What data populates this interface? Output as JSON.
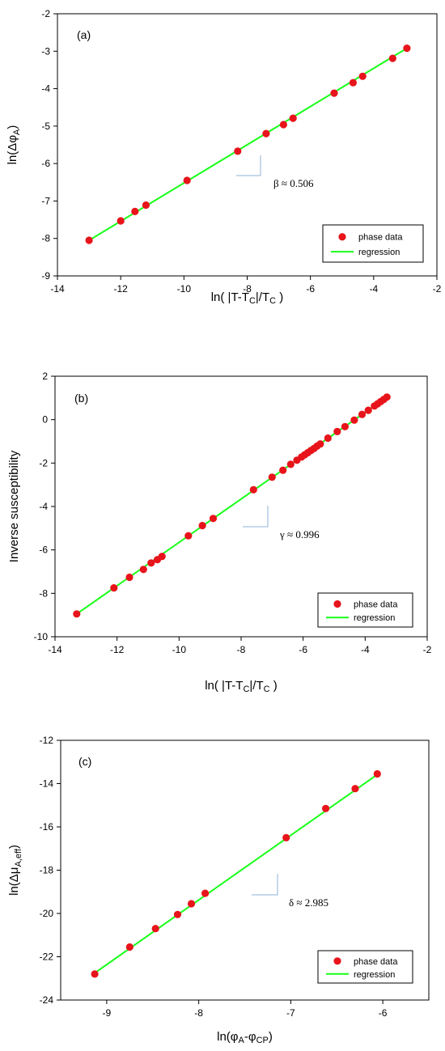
{
  "chart_data": [
    {
      "type": "scatter",
      "panel_label": "(a)",
      "xlabel": {
        "main": "ln( |T-T",
        "sub": "C",
        "mid": "|/T",
        "sub2": "C",
        "end": " )"
      },
      "ylabel": {
        "main": "ln(Δφ",
        "sub": "A",
        "end": ")"
      },
      "xlim": [
        -14,
        -2
      ],
      "ylim": [
        -9,
        -2
      ],
      "xticks": [
        "-14",
        "-12",
        "-10",
        "-8",
        "-6",
        "-4",
        "-2"
      ],
      "yticks": [
        "-9",
        "-8",
        "-7",
        "-6",
        "-5",
        "-4",
        "-3",
        "-2"
      ],
      "exponent_label": "β ≈ 0.506",
      "legend": {
        "position": "bottom-right",
        "entries": [
          "phase data",
          "regression"
        ]
      },
      "series": [
        {
          "name": "phase data",
          "kind": "points",
          "color": "#e8141b",
          "x": [
            -13.0,
            -12.0,
            -11.55,
            -11.2,
            -9.9,
            -8.3,
            -7.4,
            -6.85,
            -6.55,
            -5.25,
            -4.65,
            -4.35,
            -3.4,
            -2.95
          ],
          "y": [
            -8.05,
            -7.53,
            -7.28,
            -7.11,
            -6.45,
            -5.67,
            -5.2,
            -4.96,
            -4.79,
            -4.12,
            -3.84,
            -3.67,
            -3.19,
            -2.92
          ]
        },
        {
          "name": "regression",
          "kind": "line",
          "color": "#19ff19",
          "x": [
            -13.0,
            -2.95
          ],
          "y": [
            -8.05,
            -2.92
          ]
        }
      ]
    },
    {
      "type": "scatter",
      "panel_label": "(b)",
      "xlabel": {
        "main": "ln( |T-T",
        "sub": "C",
        "mid": "|/T",
        "sub2": "C",
        "end": " )"
      },
      "ylabel": {
        "main": "Inverse susceptibility",
        "sub": "",
        "end": ""
      },
      "xlim": [
        -14,
        -2
      ],
      "ylim": [
        -10,
        2
      ],
      "xticks": [
        "-14",
        "-12",
        "-10",
        "-8",
        "-6",
        "-4",
        "-2"
      ],
      "yticks": [
        "-10",
        "-8",
        "-6",
        "-4",
        "-2",
        "0",
        "2"
      ],
      "exponent_label": "γ ≈ 0.996",
      "legend": {
        "position": "bottom-right",
        "entries": [
          "phase data",
          "regression"
        ]
      },
      "series": [
        {
          "name": "phase data",
          "kind": "points",
          "color": "#e8141b",
          "x": [
            -13.3,
            -12.1,
            -11.6,
            -11.15,
            -10.9,
            -10.7,
            -10.55,
            -9.7,
            -9.25,
            -8.9,
            -7.6,
            -7.0,
            -6.65,
            -6.4,
            -6.2,
            -6.05,
            -5.95,
            -5.85,
            -5.75,
            -5.65,
            -5.55,
            -5.45,
            -5.2,
            -4.9,
            -4.65,
            -4.35,
            -4.1,
            -3.9,
            -3.7,
            -3.6,
            -3.5,
            -3.4,
            -3.3
          ],
          "y": [
            -8.95,
            -7.75,
            -7.26,
            -6.9,
            -6.6,
            -6.45,
            -6.3,
            -5.35,
            -4.88,
            -4.55,
            -3.23,
            -2.65,
            -2.33,
            -2.06,
            -1.87,
            -1.72,
            -1.62,
            -1.52,
            -1.42,
            -1.33,
            -1.22,
            -1.12,
            -0.85,
            -0.55,
            -0.32,
            -0.02,
            0.24,
            0.43,
            0.63,
            0.73,
            0.83,
            0.93,
            1.04
          ]
        },
        {
          "name": "regression",
          "kind": "line",
          "color": "#19ff19",
          "x": [
            -13.3,
            -3.3
          ],
          "y": [
            -8.95,
            1.04
          ]
        }
      ]
    },
    {
      "type": "scatter",
      "panel_label": "(c)",
      "xlabel": {
        "main": "ln(φ",
        "sub": "A",
        "mid": "-φ",
        "sub2": "CP",
        "end": ")"
      },
      "ylabel": {
        "main": "ln(Δμ",
        "sub": "A,eff",
        "end": ")"
      },
      "xlim": [
        -9.5,
        -5.5
      ],
      "ylim": [
        -24,
        -12
      ],
      "xticks": [
        "-9",
        "-8",
        "-7",
        "-6"
      ],
      "xtick_values": [
        -9,
        -8,
        -7,
        -6
      ],
      "yticks": [
        "-24",
        "-22",
        "-20",
        "-18",
        "-16",
        "-14",
        "-12"
      ],
      "exponent_label": "δ ≈ 2.985",
      "legend": {
        "position": "bottom-right",
        "entries": [
          "phase data",
          "regression"
        ]
      },
      "series": [
        {
          "name": "phase data",
          "kind": "points",
          "color": "#e8141b",
          "x": [
            -9.13,
            -8.75,
            -8.47,
            -8.23,
            -8.08,
            -7.93,
            -7.05,
            -6.62,
            -6.3,
            -6.06
          ],
          "y": [
            -22.8,
            -21.55,
            -20.7,
            -20.05,
            -19.55,
            -19.07,
            -16.5,
            -15.15,
            -14.23,
            -13.55
          ]
        },
        {
          "name": "regression",
          "kind": "line",
          "color": "#19ff19",
          "x": [
            -9.13,
            -6.06
          ],
          "y": [
            -22.75,
            -13.58
          ]
        }
      ]
    }
  ]
}
